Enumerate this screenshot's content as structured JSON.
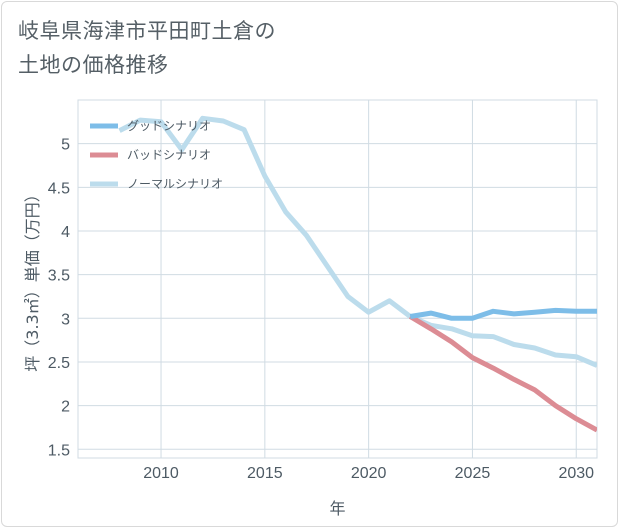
{
  "title_line1": "岐阜県海津市平田町土倉の",
  "title_line2": "土地の価格推移",
  "chart_data": {
    "type": "line",
    "xlabel": "年",
    "ylabel": "坪（3.3㎡）単価（万円）",
    "xlim": [
      2006,
      2031
    ],
    "ylim": [
      1.4,
      5.5
    ],
    "xticks": [
      2010,
      2015,
      2020,
      2025,
      2030
    ],
    "yticks": [
      1.5,
      2,
      2.5,
      3,
      3.5,
      4,
      4.5,
      5
    ],
    "ytick_labels": [
      "1.5",
      "2",
      "2.5",
      "3",
      "3.5",
      "4",
      "4.5",
      "5"
    ],
    "grid": true,
    "legend_position": "top-left",
    "series": [
      {
        "name": "グッドシナリオ",
        "color": "#7dbde8",
        "x": [
          2022,
          2023,
          2024,
          2025,
          2026,
          2027,
          2028,
          2029,
          2030,
          2031
        ],
        "y": [
          3.02,
          3.06,
          3.0,
          3.0,
          3.08,
          3.05,
          3.07,
          3.09,
          3.08,
          3.08
        ]
      },
      {
        "name": "バッドシナリオ",
        "color": "#dc8c94",
        "x": [
          2022,
          2023,
          2024,
          2025,
          2026,
          2027,
          2028,
          2029,
          2030,
          2031
        ],
        "y": [
          3.02,
          2.88,
          2.73,
          2.55,
          2.43,
          2.3,
          2.18,
          2.0,
          1.85,
          1.72
        ]
      },
      {
        "name": "ノーマルシナリオ",
        "color": "#bcdcec",
        "x": [
          2008,
          2009,
          2010,
          2011,
          2012,
          2013,
          2014,
          2015,
          2016,
          2017,
          2018,
          2019,
          2020,
          2021,
          2022,
          2023,
          2024,
          2025,
          2026,
          2027,
          2028,
          2029,
          2030,
          2031
        ],
        "y": [
          5.15,
          5.27,
          5.25,
          4.93,
          5.29,
          5.26,
          5.16,
          4.63,
          4.22,
          3.95,
          3.6,
          3.25,
          3.07,
          3.2,
          3.02,
          2.92,
          2.88,
          2.8,
          2.79,
          2.7,
          2.66,
          2.58,
          2.56,
          2.46
        ]
      }
    ]
  }
}
